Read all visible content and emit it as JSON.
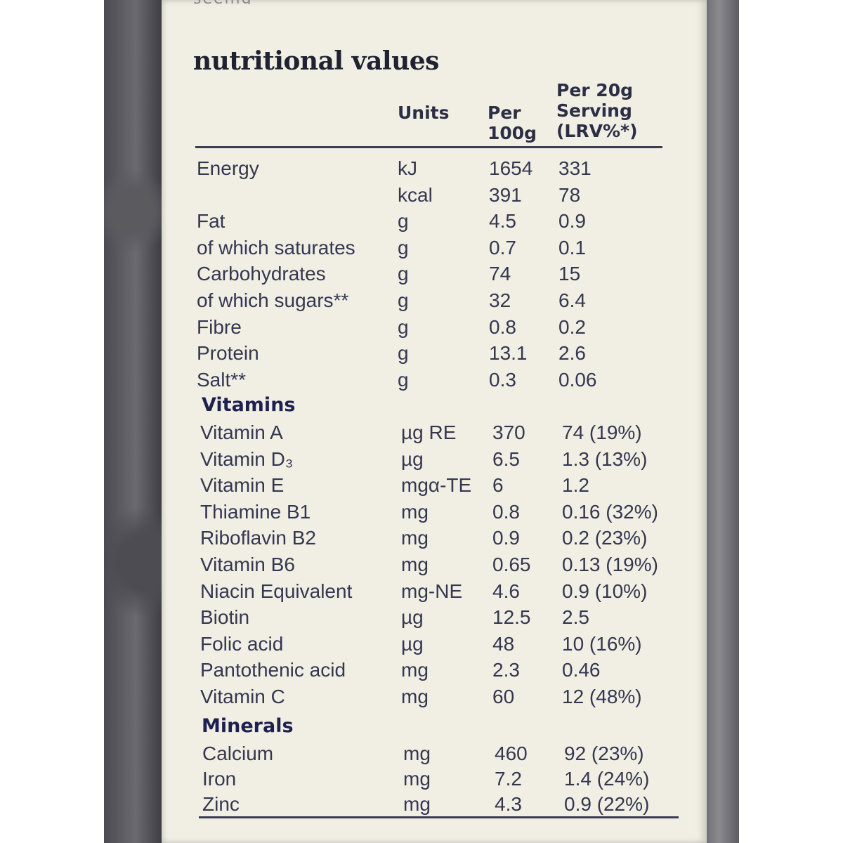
{
  "top_fragment": "seeing",
  "title": "nutritional values",
  "headers": {
    "units": "Units",
    "per100_line1": "Per",
    "per100_line2": "100g",
    "serving_line1": "Per 20g",
    "serving_line2": "Serving",
    "serving_line3": "(LRV%*)"
  },
  "nutrients": [
    {
      "name": "Energy",
      "unit": "kJ",
      "per100": "1654",
      "serving": "331"
    },
    {
      "name": "",
      "unit": "kcal",
      "per100": "391",
      "serving": "78"
    },
    {
      "name": "Fat",
      "unit": "g",
      "per100": "4.5",
      "serving": "0.9"
    },
    {
      "name": "of which saturates",
      "unit": "g",
      "per100": "0.7",
      "serving": "0.1"
    },
    {
      "name": "Carbohydrates",
      "unit": "g",
      "per100": "74",
      "serving": "15"
    },
    {
      "name": "of which sugars**",
      "unit": "g",
      "per100": "32",
      "serving": "6.4"
    },
    {
      "name": "Fibre",
      "unit": "g",
      "per100": "0.8",
      "serving": "0.2"
    },
    {
      "name": "Protein",
      "unit": "g",
      "per100": "13.1",
      "serving": "2.6"
    },
    {
      "name": "Salt**",
      "unit": "g",
      "per100": "0.3",
      "serving": "0.06"
    }
  ],
  "vitamins_label": "Vitamins",
  "vitamins": [
    {
      "name": "Vitamin A",
      "unit": "µg RE",
      "per100": "370",
      "serving": "74 (19%)"
    },
    {
      "name": "Vitamin D₃",
      "unit": "µg",
      "per100": "6.5",
      "serving": "1.3 (13%)"
    },
    {
      "name": "Vitamin E",
      "unit": "mgα-TE",
      "per100": "6",
      "serving": "1.2"
    },
    {
      "name": "Thiamine B1",
      "unit": "mg",
      "per100": "0.8",
      "serving": "0.16 (32%)"
    },
    {
      "name": "Riboflavin B2",
      "unit": "mg",
      "per100": "0.9",
      "serving": "0.2 (23%)"
    },
    {
      "name": "Vitamin B6",
      "unit": "mg",
      "per100": "0.65",
      "serving": "0.13 (19%)"
    },
    {
      "name": "Niacin Equivalent",
      "unit": "mg-NE",
      "per100": "4.6",
      "serving": "0.9 (10%)"
    },
    {
      "name": "Biotin",
      "unit": "µg",
      "per100": "12.5",
      "serving": "2.5"
    },
    {
      "name": "Folic acid",
      "unit": "µg",
      "per100": "48",
      "serving": "10 (16%)"
    },
    {
      "name": "Pantothenic acid",
      "unit": "mg",
      "per100": "2.3",
      "serving": "0.46"
    },
    {
      "name": "Vitamin C",
      "unit": "mg",
      "per100": "60",
      "serving": "12 (48%)"
    }
  ],
  "minerals_label": "Minerals",
  "minerals": [
    {
      "name": "Calcium",
      "unit": "mg",
      "per100": "460",
      "serving": "92 (23%)"
    },
    {
      "name": "Iron",
      "unit": "mg",
      "per100": "7.2",
      "serving": "1.4 (24%)"
    },
    {
      "name": "Zinc",
      "unit": "mg",
      "per100": "4.3",
      "serving": "0.9 (22%)"
    }
  ]
}
